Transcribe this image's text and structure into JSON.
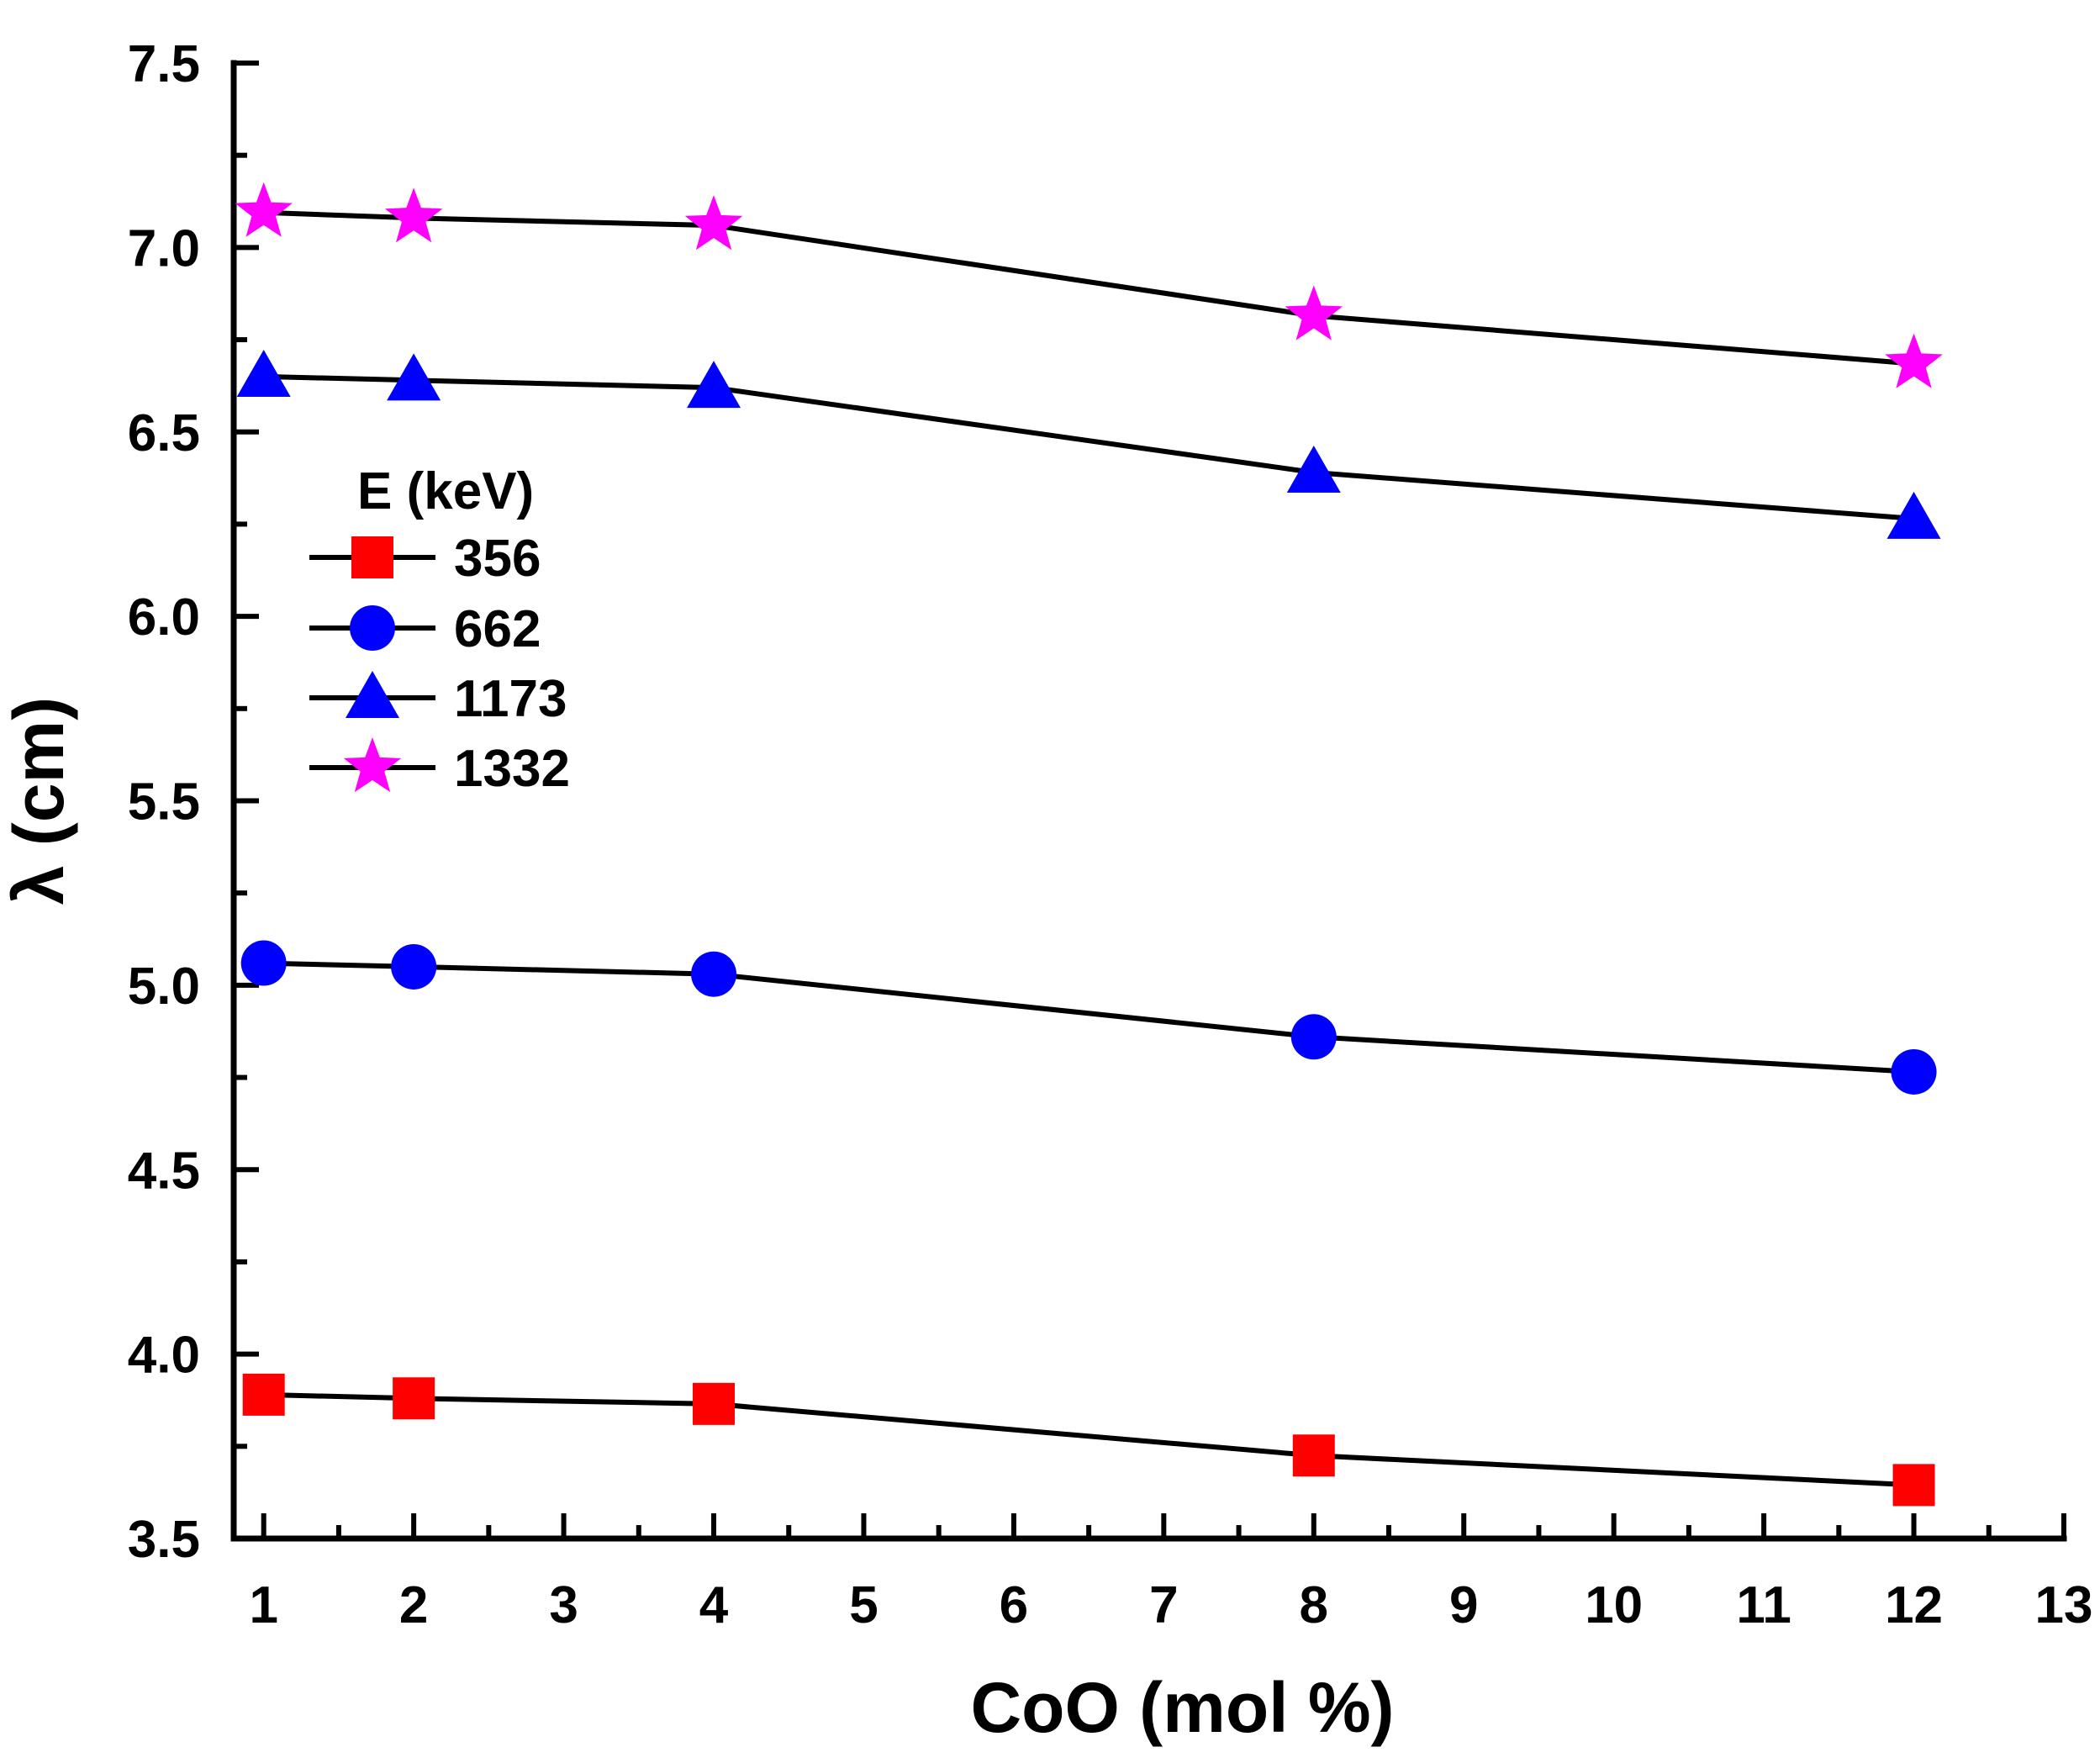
{
  "chart_data": {
    "type": "line",
    "title": "",
    "xlabel": "CoO (mol %)",
    "ylabel": "λ (cm)",
    "xlim": [
      0.8,
      13
    ],
    "ylim": [
      3.5,
      7.5
    ],
    "xticks": [
      1,
      2,
      3,
      4,
      5,
      6,
      7,
      8,
      9,
      10,
      11,
      12,
      13
    ],
    "yticks": [
      3.5,
      4.0,
      4.5,
      5.0,
      5.5,
      6.0,
      6.5,
      7.0,
      7.5
    ],
    "ytick_labels": [
      "3.5",
      "4.0",
      "4.5",
      "5.0",
      "5.5",
      "6.0",
      "6.5",
      "7.0",
      "7.5"
    ],
    "grid": false,
    "legend_title": "E (keV)",
    "legend_position": "upper-left",
    "x": [
      1,
      2,
      4,
      8,
      12
    ],
    "series": [
      {
        "name": "356",
        "marker": "square",
        "color": "#ff0000",
        "values": [
          3.89,
          3.88,
          3.865,
          3.725,
          3.645
        ]
      },
      {
        "name": "662",
        "marker": "circle",
        "color": "#0000ff",
        "values": [
          5.06,
          5.05,
          5.03,
          4.86,
          4.765
        ]
      },
      {
        "name": "1173",
        "marker": "triangle",
        "color": "#0000ff",
        "values": [
          6.65,
          6.64,
          6.62,
          6.39,
          6.265
        ]
      },
      {
        "name": "1332",
        "marker": "star",
        "color": "#ff00ff",
        "values": [
          7.095,
          7.08,
          7.06,
          6.815,
          6.685
        ]
      }
    ],
    "line_color": "#000000"
  }
}
